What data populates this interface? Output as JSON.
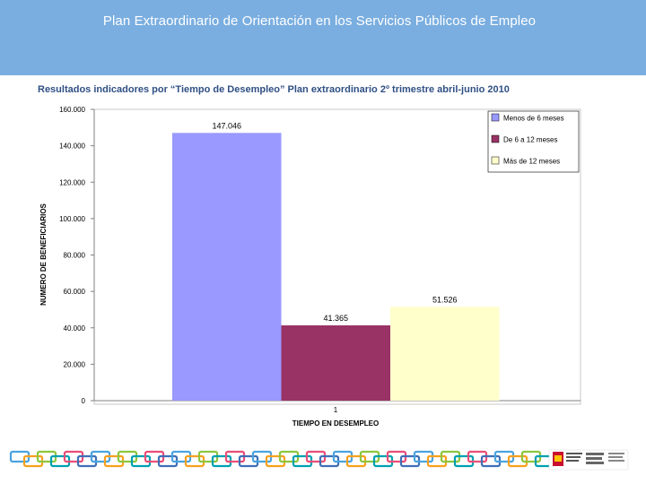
{
  "header": {
    "title": "Plan Extraordinario de Orientación en los Servicios Públicos de Empleo",
    "background_color": "#7aaee0"
  },
  "subtitle": "Resultados indicadores por “Tiempo de Desempleo” Plan extraordinario 2º trimestre abril-junio 2010",
  "chart_data": {
    "type": "bar",
    "categories": [
      "1"
    ],
    "series": [
      {
        "name": "Menos de 6 meses",
        "values": [
          147046
        ],
        "label": "147.046",
        "color": "#9999ff"
      },
      {
        "name": "De 6 a 12 meses",
        "values": [
          41365
        ],
        "label": "41.365",
        "color": "#993366"
      },
      {
        "name": "Más de 12 meses",
        "values": [
          51526
        ],
        "label": "51.526",
        "color": "#ffffcc"
      }
    ],
    "ylabel": "NUMERO DE BENEFICIARIOS",
    "xlabel": "TIEMPO EN DESEMPLEO",
    "ylim": [
      0,
      160000
    ],
    "yticks": [
      0,
      20000,
      40000,
      60000,
      80000,
      100000,
      120000,
      140000,
      160000
    ],
    "ytick_labels": [
      "0",
      "20.000",
      "40.000",
      "60.000",
      "80.000",
      "100.000",
      "120.000",
      "140.000",
      "160.000"
    ],
    "legend_position": "top-right",
    "grid": false
  },
  "footer": {
    "decoration": "chain-links-icon",
    "logo": "ministerio-logo-icon"
  }
}
